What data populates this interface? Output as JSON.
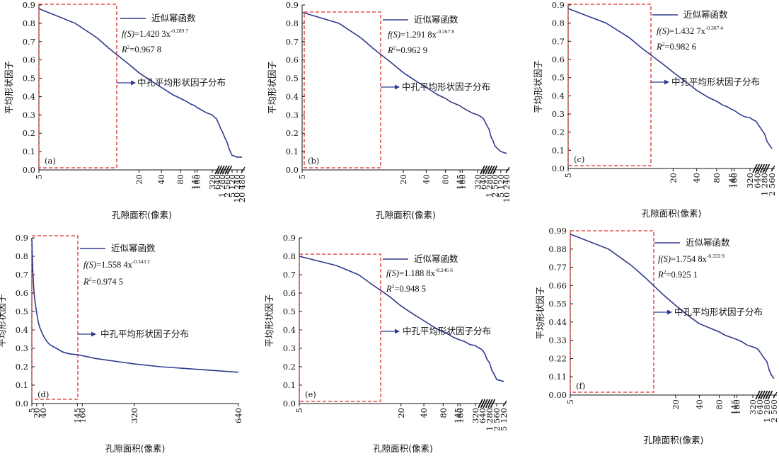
{
  "chart_data": [
    {
      "type": "line",
      "panel_label": "(a)",
      "ylabel": "平均形状因子",
      "xlabel": "孔隙面积(像素)",
      "ylim": [
        0,
        0.9
      ],
      "y_ticks": [
        "0.0",
        "0.1",
        "0.2",
        "0.3",
        "0.4",
        "0.5",
        "0.6",
        "0.7",
        "0.8",
        "0.9"
      ],
      "x_ticks": [
        "5",
        "20",
        "40",
        "80",
        "145",
        "160",
        "320",
        "640",
        "1 280",
        "2 560",
        "5 120",
        "10 240",
        "20 480"
      ],
      "legend": {
        "line": "近似幂函数",
        "arrow": "中孔平均形状因子分布"
      },
      "formula": {
        "prefix": "f(S)",
        "value": "=1.420 3x",
        "exponent": "-0.289 7",
        "r2_prefix": "R",
        "r2_value": "=0.967 8"
      },
      "x": [
        5,
        6,
        8,
        10,
        15,
        20,
        30,
        40,
        60,
        80,
        100,
        120,
        145,
        160,
        200,
        250,
        320,
        400,
        480,
        560,
        640,
        800,
        1000,
        1280,
        1600,
        2000,
        2560,
        3200,
        4000,
        5120,
        10240,
        20480
      ],
      "y": [
        0.88,
        0.8,
        0.72,
        0.66,
        0.58,
        0.53,
        0.48,
        0.45,
        0.41,
        0.39,
        0.375,
        0.36,
        0.35,
        0.34,
        0.325,
        0.31,
        0.3,
        0.29,
        0.285,
        0.28,
        0.27,
        0.25,
        0.23,
        0.21,
        0.19,
        0.17,
        0.15,
        0.12,
        0.1,
        0.08,
        0.07,
        0.07
      ]
    },
    {
      "type": "line",
      "panel_label": "(b)",
      "ylabel": "平均形状因子",
      "xlabel": "孔隙面积(像素)",
      "ylim": [
        0,
        0.9
      ],
      "y_ticks": [
        "0.0",
        "0.1",
        "0.2",
        "0.3",
        "0.4",
        "0.5",
        "0.6",
        "0.7",
        "0.8",
        "0.9"
      ],
      "x_ticks": [
        "5",
        "20",
        "40",
        "80",
        "145",
        "160",
        "320",
        "640",
        "1 280",
        "2 560",
        "5 120",
        "10 240"
      ],
      "legend": {
        "line": "近似幂函数",
        "arrow": "中孔平均形状因子分布"
      },
      "formula": {
        "prefix": "f(S)",
        "value": "=1.291 8x",
        "exponent": "-0.267 8",
        "r2_prefix": "R",
        "r2_value": "=0.962 9"
      },
      "x": [
        5,
        6,
        8,
        10,
        15,
        20,
        30,
        40,
        60,
        80,
        100,
        120,
        145,
        160,
        200,
        250,
        320,
        400,
        480,
        560,
        640,
        800,
        1000,
        1280,
        1600,
        2000,
        2560,
        3200,
        5120,
        10240
      ],
      "y": [
        0.86,
        0.8,
        0.72,
        0.66,
        0.58,
        0.53,
        0.48,
        0.45,
        0.41,
        0.39,
        0.37,
        0.36,
        0.35,
        0.34,
        0.325,
        0.31,
        0.3,
        0.295,
        0.29,
        0.285,
        0.28,
        0.26,
        0.24,
        0.22,
        0.18,
        0.16,
        0.13,
        0.12,
        0.1,
        0.09
      ]
    },
    {
      "type": "line",
      "panel_label": "(c)",
      "ylabel": "平均形状因子",
      "xlabel": "孔隙面积(像素)",
      "ylim": [
        0,
        0.9
      ],
      "y_ticks": [
        "0.0",
        "0.1",
        "0.2",
        "0.3",
        "0.4",
        "0.5",
        "0.6",
        "0.7",
        "0.8",
        "0.9"
      ],
      "x_ticks": [
        "5",
        "20",
        "40",
        "80",
        "145",
        "160",
        "320",
        "640",
        "1 280",
        "2 560"
      ],
      "legend": {
        "line": "近似幂函数",
        "arrow": "中孔平均形状因子分布"
      },
      "formula": {
        "prefix": "f(S)",
        "value": "=1.432 7x",
        "exponent": "-0.307 4",
        "r2_prefix": "R",
        "r2_value": "=0.982 6"
      },
      "x": [
        5,
        6,
        8,
        10,
        15,
        20,
        30,
        40,
        60,
        80,
        100,
        120,
        145,
        160,
        200,
        250,
        320,
        400,
        480,
        560,
        640,
        800,
        1000,
        1280,
        1600,
        2000,
        2560
      ],
      "y": [
        0.88,
        0.8,
        0.72,
        0.66,
        0.58,
        0.53,
        0.47,
        0.43,
        0.39,
        0.37,
        0.35,
        0.34,
        0.325,
        0.32,
        0.3,
        0.285,
        0.28,
        0.27,
        0.265,
        0.26,
        0.25,
        0.23,
        0.21,
        0.19,
        0.15,
        0.13,
        0.11
      ]
    },
    {
      "type": "line",
      "panel_label": "(d)",
      "ylabel": "平均形状因子",
      "xlabel": "孔隙面积(像素)",
      "ylim": [
        0,
        0.9
      ],
      "y_ticks": [
        "0.0",
        "0.1",
        "0.2",
        "0.3",
        "0.4",
        "0.5",
        "0.6",
        "0.7",
        "0.8",
        "0.9"
      ],
      "x_ticks": [
        "5",
        "20",
        "40",
        "145",
        "160",
        "320",
        "640"
      ],
      "legend": {
        "line": "近似幂函数",
        "arrow": "中孔平均形状因子分布"
      },
      "formula": {
        "prefix": "f(S)",
        "value": "=1.558 4x",
        "exponent": "-0.343 2",
        "r2_prefix": "R",
        "r2_value": "=0.974 5"
      },
      "x": [
        5,
        6,
        8,
        10,
        12,
        15,
        20,
        25,
        30,
        40,
        50,
        60,
        80,
        100,
        120,
        145,
        160,
        200,
        240,
        280,
        320,
        400,
        480,
        560,
        640
      ],
      "y": [
        0.9,
        0.82,
        0.72,
        0.65,
        0.6,
        0.55,
        0.49,
        0.44,
        0.41,
        0.37,
        0.34,
        0.32,
        0.3,
        0.28,
        0.27,
        0.265,
        0.26,
        0.245,
        0.235,
        0.225,
        0.215,
        0.2,
        0.19,
        0.18,
        0.17
      ]
    },
    {
      "type": "line",
      "panel_label": "(e)",
      "ylabel": "平均形状因子",
      "xlabel": "孔隙面积(像素)",
      "ylim": [
        0,
        0.9
      ],
      "y_ticks": [
        "0.0",
        "0.1",
        "0.2",
        "0.3",
        "0.4",
        "0.5",
        "0.6",
        "0.7",
        "0.8",
        "0.9"
      ],
      "x_ticks": [
        "5",
        "20",
        "40",
        "80",
        "145",
        "160",
        "320",
        "640",
        "1 280",
        "2 560",
        "5 120"
      ],
      "legend": {
        "line": "近似幂函数",
        "arrow": "中孔平均形状因子分布"
      },
      "formula": {
        "prefix": "f(S)",
        "value": "=1.188 8x",
        "exponent": "-0.246 6",
        "r2_prefix": "R",
        "r2_value": "=0.948 5"
      },
      "x": [
        5,
        6,
        8,
        10,
        15,
        20,
        30,
        40,
        60,
        80,
        100,
        120,
        145,
        160,
        200,
        250,
        320,
        400,
        480,
        560,
        640,
        800,
        1000,
        1280,
        1600,
        2000,
        2560,
        5120
      ],
      "y": [
        0.8,
        0.75,
        0.7,
        0.65,
        0.58,
        0.53,
        0.48,
        0.45,
        0.41,
        0.39,
        0.375,
        0.36,
        0.35,
        0.345,
        0.335,
        0.32,
        0.315,
        0.305,
        0.3,
        0.295,
        0.29,
        0.27,
        0.24,
        0.22,
        0.18,
        0.16,
        0.13,
        0.12
      ]
    },
    {
      "type": "line",
      "panel_label": "(f)",
      "ylabel": "平均形状因子",
      "xlabel": "孔隙面积(像素)",
      "ylim": [
        0,
        0.99
      ],
      "y_ticks": [
        "0.00",
        "0.11",
        "0.22",
        "0.33",
        "0.44",
        "0.55",
        "0.66",
        "0.77",
        "0.88",
        "0.99"
      ],
      "x_ticks": [
        "5",
        "20",
        "40",
        "80",
        "145",
        "160",
        "320",
        "640",
        "1 280",
        "2 560"
      ],
      "legend": {
        "line": "近似幂函数",
        "arrow": "中孔平均形状因子分布"
      },
      "formula": {
        "prefix": "f(S)",
        "value": "=1.754 8x",
        "exponent": "-0.333 9",
        "r2_prefix": "R",
        "r2_value": "=0.925 1"
      },
      "x": [
        5,
        6,
        8,
        10,
        15,
        20,
        30,
        40,
        60,
        80,
        100,
        120,
        145,
        160,
        200,
        250,
        320,
        400,
        480,
        560,
        640,
        800,
        1000,
        1280,
        1600,
        2000,
        2560
      ],
      "y": [
        0.97,
        0.88,
        0.78,
        0.71,
        0.6,
        0.54,
        0.47,
        0.43,
        0.4,
        0.38,
        0.36,
        0.35,
        0.34,
        0.335,
        0.32,
        0.3,
        0.29,
        0.285,
        0.28,
        0.27,
        0.26,
        0.24,
        0.22,
        0.2,
        0.15,
        0.12,
        0.1
      ]
    }
  ]
}
